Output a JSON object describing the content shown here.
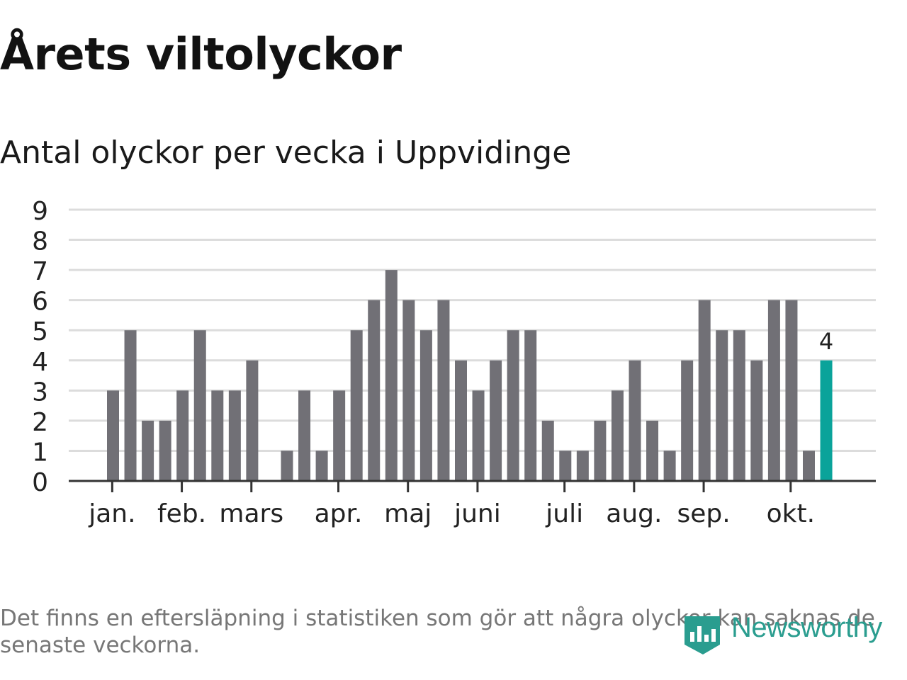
{
  "chart_data": {
    "type": "bar",
    "title": "Årets viltolyckor",
    "subtitle": "Antal olyckor per vecka i Uppvidinge",
    "values": [
      3,
      5,
      2,
      2,
      3,
      5,
      3,
      3,
      4,
      0,
      1,
      3,
      1,
      3,
      5,
      6,
      7,
      6,
      5,
      6,
      4,
      3,
      4,
      5,
      5,
      2,
      1,
      1,
      2,
      3,
      4,
      2,
      1,
      4,
      6,
      5,
      5,
      4,
      6,
      6,
      1,
      4
    ],
    "highlight_last": true,
    "highlight_label": "4",
    "ylim": [
      0,
      9
    ],
    "yticks": [
      "0",
      "1",
      "2",
      "3",
      "4",
      "5",
      "6",
      "7",
      "8",
      "9"
    ],
    "month_labels": [
      {
        "label": "jan.",
        "week": 0.3
      },
      {
        "label": "feb.",
        "week": 4.3
      },
      {
        "label": "mars",
        "week": 8.3
      },
      {
        "label": "apr.",
        "week": 13.3
      },
      {
        "label": "maj",
        "week": 17.3
      },
      {
        "label": "juni",
        "week": 21.3
      },
      {
        "label": "juli",
        "week": 26.3
      },
      {
        "label": "aug.",
        "week": 30.3
      },
      {
        "label": "sep.",
        "week": 34.3
      },
      {
        "label": "okt.",
        "week": 39.3
      }
    ],
    "xlabel": "",
    "ylabel": "",
    "grid": true,
    "colors": {
      "bar": "#717076",
      "highlight": "#0aa39a",
      "grid": "#dcdcdc",
      "axis": "#333333"
    }
  },
  "footnote": "Det finns en eftersläpning i statistiken som gör att några olyckor kan saknas de senaste veckorna.",
  "logo": {
    "text": "Newsworthy",
    "color": "#2a9d8f"
  }
}
